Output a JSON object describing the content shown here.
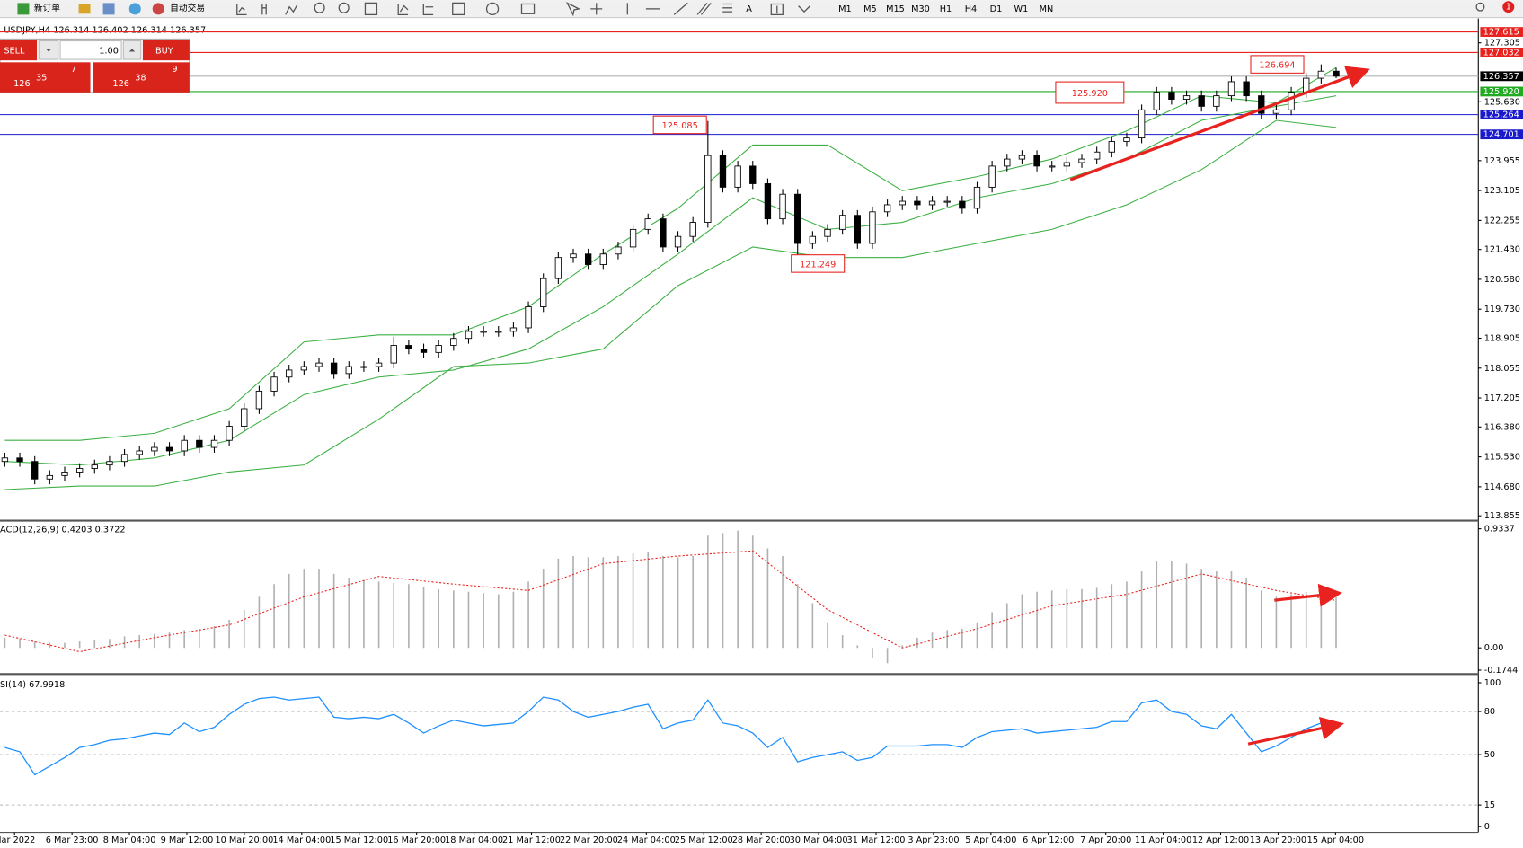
{
  "toolbar": {
    "new_order": "新订单",
    "auto_trading": "自动交易",
    "timeframes": [
      "M1",
      "M5",
      "M15",
      "M30",
      "H1",
      "H4",
      "D1",
      "W1",
      "MN"
    ],
    "alerts": "1"
  },
  "trade_panel": {
    "sell": "SELL",
    "buy": "BUY",
    "lot": "1.00",
    "sell_price": {
      "big": "126",
      "pips": "35",
      "point": "7"
    },
    "buy_price": {
      "big": "126",
      "pips": "38",
      "point": "9"
    }
  },
  "chart_data": [
    {
      "type": "candlestick",
      "title": "USDJPY,H4  126.314 126.402 126.314 126.357",
      "x_labels": [
        "Mar 2022",
        "6 Mar 23:00",
        "8 Mar 04:00",
        "9 Mar 12:00",
        "10 Mar 20:00",
        "14 Mar 04:00",
        "15 Mar 12:00",
        "16 Mar 20:00",
        "18 Mar 04:00",
        "21 Mar 12:00",
        "22 Mar 20:00",
        "24 Mar 04:00",
        "25 Mar 12:00",
        "28 Mar 20:00",
        "30 Mar 04:00",
        "31 Mar 12:00",
        "3 Apr 23:00",
        "5 Apr 04:00",
        "6 Apr 12:00",
        "7 Apr 20:00",
        "11 Apr 04:00",
        "12 Apr 12:00",
        "13 Apr 20:00",
        "15 Apr 04:00"
      ],
      "ohlc": [
        [
          115.4,
          115.65,
          115.25,
          115.5
        ],
        [
          115.5,
          115.65,
          115.25,
          115.4
        ],
        [
          115.4,
          115.55,
          114.75,
          114.9
        ],
        [
          114.9,
          115.15,
          114.75,
          115.0
        ],
        [
          115.0,
          115.25,
          114.85,
          115.1
        ],
        [
          115.1,
          115.35,
          114.95,
          115.2
        ],
        [
          115.2,
          115.45,
          115.05,
          115.3
        ],
        [
          115.3,
          115.55,
          115.15,
          115.4
        ],
        [
          115.4,
          115.75,
          115.25,
          115.6
        ],
        [
          115.6,
          115.85,
          115.45,
          115.7
        ],
        [
          115.7,
          115.95,
          115.55,
          115.8
        ],
        [
          115.8,
          115.95,
          115.55,
          115.7
        ],
        [
          115.7,
          116.15,
          115.55,
          116.0
        ],
        [
          116.0,
          116.15,
          115.65,
          115.8
        ],
        [
          115.8,
          116.15,
          115.65,
          116.0
        ],
        [
          116.0,
          116.55,
          115.85,
          116.4
        ],
        [
          116.4,
          117.05,
          116.25,
          116.9
        ],
        [
          116.9,
          117.55,
          116.75,
          117.4
        ],
        [
          117.4,
          117.95,
          117.25,
          117.8
        ],
        [
          117.8,
          118.15,
          117.65,
          118.0
        ],
        [
          118.0,
          118.25,
          117.85,
          118.1
        ],
        [
          118.1,
          118.35,
          117.95,
          118.2
        ],
        [
          118.2,
          118.35,
          117.75,
          117.9
        ],
        [
          117.9,
          118.25,
          117.75,
          118.1
        ],
        [
          118.1,
          118.25,
          117.95,
          118.1
        ],
        [
          118.1,
          118.35,
          117.95,
          118.2
        ],
        [
          118.2,
          118.95,
          118.05,
          118.7
        ],
        [
          118.7,
          118.85,
          118.45,
          118.6
        ],
        [
          118.6,
          118.75,
          118.35,
          118.5
        ],
        [
          118.5,
          118.85,
          118.35,
          118.7
        ],
        [
          118.7,
          119.05,
          118.55,
          118.9
        ],
        [
          118.9,
          119.25,
          118.75,
          119.1
        ],
        [
          119.1,
          119.25,
          118.95,
          119.1
        ],
        [
          119.1,
          119.25,
          118.95,
          119.1
        ],
        [
          119.1,
          119.35,
          118.95,
          119.2
        ],
        [
          119.2,
          119.95,
          119.05,
          119.8
        ],
        [
          119.8,
          120.75,
          119.65,
          120.6
        ],
        [
          120.6,
          121.35,
          120.45,
          121.2
        ],
        [
          121.2,
          121.45,
          121.05,
          121.3
        ],
        [
          121.3,
          121.45,
          120.85,
          121.0
        ],
        [
          121.0,
          121.45,
          120.85,
          121.3
        ],
        [
          121.3,
          121.65,
          121.15,
          121.5
        ],
        [
          121.5,
          122.15,
          121.35,
          122.0
        ],
        [
          122.0,
          122.45,
          121.85,
          122.3
        ],
        [
          122.3,
          122.45,
          121.35,
          121.5
        ],
        [
          121.5,
          121.95,
          121.35,
          121.8
        ],
        [
          121.8,
          122.35,
          121.65,
          122.2
        ],
        [
          122.2,
          125.085,
          122.05,
          124.1
        ],
        [
          124.1,
          124.25,
          123.05,
          123.2
        ],
        [
          123.2,
          123.95,
          123.05,
          123.8
        ],
        [
          123.8,
          123.95,
          123.15,
          123.3
        ],
        [
          123.3,
          123.45,
          122.15,
          122.3
        ],
        [
          122.3,
          123.15,
          122.15,
          123.0
        ],
        [
          123.0,
          123.15,
          121.249,
          121.6
        ],
        [
          121.6,
          121.95,
          121.45,
          121.8
        ],
        [
          121.8,
          122.15,
          121.65,
          122.0
        ],
        [
          122.0,
          122.55,
          121.85,
          122.4
        ],
        [
          122.4,
          122.55,
          121.45,
          121.6
        ],
        [
          121.6,
          122.65,
          121.45,
          122.5
        ],
        [
          122.5,
          122.85,
          122.35,
          122.7
        ],
        [
          122.7,
          122.95,
          122.55,
          122.8
        ],
        [
          122.8,
          122.95,
          122.55,
          122.7
        ],
        [
          122.7,
          122.95,
          122.55,
          122.8
        ],
        [
          122.8,
          122.95,
          122.65,
          122.8
        ],
        [
          122.8,
          122.95,
          122.45,
          122.6
        ],
        [
          122.6,
          123.35,
          122.45,
          123.2
        ],
        [
          123.2,
          123.95,
          123.05,
          123.8
        ],
        [
          123.8,
          124.15,
          123.65,
          124.0
        ],
        [
          124.0,
          124.25,
          123.85,
          124.1
        ],
        [
          124.1,
          124.25,
          123.65,
          123.8
        ],
        [
          123.8,
          123.95,
          123.65,
          123.8
        ],
        [
          123.8,
          124.05,
          123.65,
          123.9
        ],
        [
          123.9,
          124.15,
          123.75,
          124.0
        ],
        [
          124.0,
          124.35,
          123.85,
          124.2
        ],
        [
          124.2,
          124.65,
          124.05,
          124.5
        ],
        [
          124.5,
          124.75,
          124.35,
          124.6
        ],
        [
          124.6,
          125.55,
          124.45,
          125.4
        ],
        [
          125.4,
          126.05,
          125.25,
          125.9
        ],
        [
          125.9,
          126.05,
          125.55,
          125.7
        ],
        [
          125.7,
          125.95,
          125.55,
          125.8
        ],
        [
          125.8,
          125.95,
          125.35,
          125.5
        ],
        [
          125.5,
          125.95,
          125.35,
          125.8
        ],
        [
          125.8,
          126.35,
          125.65,
          126.2
        ],
        [
          126.2,
          126.35,
          125.65,
          125.8
        ],
        [
          125.8,
          125.95,
          125.15,
          125.3
        ],
        [
          125.3,
          125.55,
          125.15,
          125.4
        ],
        [
          125.4,
          126.05,
          125.25,
          125.9
        ],
        [
          125.9,
          126.45,
          125.75,
          126.3
        ],
        [
          126.3,
          126.694,
          126.15,
          126.5
        ],
        [
          126.5,
          126.6,
          126.3,
          126.357
        ]
      ],
      "bands": {
        "color": "#3cb043",
        "x": [
          0,
          5,
          10,
          15,
          20,
          25,
          30,
          35,
          40,
          45,
          50,
          55,
          60,
          65,
          70,
          75,
          80,
          85,
          89
        ],
        "upper": [
          116.0,
          116.0,
          116.2,
          116.9,
          118.8,
          119.0,
          119.0,
          119.8,
          121.3,
          122.6,
          124.4,
          124.4,
          123.1,
          123.5,
          124.0,
          124.8,
          125.8,
          125.6,
          126.6
        ],
        "middle": [
          115.4,
          115.3,
          115.5,
          116.0,
          117.3,
          117.8,
          118.0,
          118.6,
          119.8,
          121.3,
          122.9,
          122.0,
          122.2,
          122.9,
          123.3,
          124.0,
          125.1,
          125.5,
          125.8
        ],
        "lower": [
          114.6,
          114.7,
          114.7,
          115.1,
          115.3,
          116.6,
          118.1,
          118.2,
          118.6,
          120.4,
          121.5,
          121.2,
          121.2,
          121.6,
          122.0,
          122.7,
          123.7,
          125.1,
          124.9
        ]
      },
      "ylim": [
        113.745,
        127.968
      ],
      "yticks": [
        127.305,
        {
          "value": 125.63,
          "label": "125.630"
        },
        123.955,
        123.105,
        122.255,
        {
          "value": 121.43,
          "label": "121.430"
        },
        {
          "value": 120.58,
          "label": "120.580"
        },
        {
          "value": 119.73,
          "label": "119.730"
        },
        118.905,
        118.055,
        117.205,
        {
          "value": 116.38,
          "label": "116.380"
        },
        {
          "value": 115.53,
          "label": "115.530"
        },
        {
          "value": 114.68,
          "label": "114.680"
        },
        113.855
      ],
      "hlines": [
        {
          "value": 127.615,
          "color": "#e8231f"
        },
        {
          "value": 127.032,
          "color": "#e8231f"
        },
        {
          "value": 126.357,
          "color": "#000000"
        },
        {
          "value": 125.92,
          "label": "125.920",
          "color": "#22aa22"
        },
        {
          "value": 125.264,
          "color": "#1a1acc"
        },
        {
          "value": 124.701,
          "color": "#1a1acc"
        }
      ],
      "annotations": [
        125.085,
        121.249,
        {
          "value": 125.92,
          "label": "125.920"
        },
        126.694
      ]
    },
    {
      "type": "macd",
      "title": "ACD(12,26,9) 0.4203 0.3722",
      "histogram": {
        "color": "#b0b0b0",
        "values": [
          0.08,
          0.07,
          0.05,
          0.04,
          0.04,
          0.05,
          0.06,
          0.07,
          0.09,
          0.1,
          0.11,
          0.12,
          0.14,
          0.15,
          0.17,
          0.22,
          0.3,
          0.4,
          0.5,
          0.58,
          0.62,
          0.62,
          0.58,
          0.55,
          0.53,
          0.52,
          0.51,
          0.5,
          0.48,
          0.46,
          0.45,
          0.44,
          0.43,
          0.42,
          0.44,
          0.52,
          0.62,
          0.7,
          0.72,
          0.71,
          0.71,
          0.72,
          0.74,
          0.75,
          0.72,
          0.71,
          0.72,
          0.88,
          0.9,
          0.92,
          0.88,
          0.78,
          0.72,
          0.5,
          0.35,
          0.2,
          0.1,
          0.02,
          -0.08,
          -0.12,
          0.02,
          0.08,
          0.12,
          0.14,
          0.15,
          0.2,
          0.28,
          0.35,
          0.42,
          0.44,
          0.45,
          0.46,
          0.46,
          0.47,
          0.5,
          0.52,
          0.6,
          0.68,
          0.68,
          0.66,
          0.62,
          0.6,
          0.6,
          0.55,
          0.45,
          0.4,
          0.42,
          0.44,
          0.45,
          0.4203
        ]
      },
      "signal": {
        "color": "#e8231f",
        "x": [
          0,
          5,
          10,
          15,
          20,
          25,
          30,
          35,
          40,
          45,
          50,
          55,
          60,
          65,
          70,
          75,
          80,
          85,
          89
        ],
        "values": [
          0.1,
          -0.03,
          0.08,
          0.18,
          0.4,
          0.56,
          0.5,
          0.45,
          0.66,
          0.72,
          0.76,
          0.3,
          0.0,
          0.15,
          0.33,
          0.42,
          0.58,
          0.45,
          0.3722
        ]
      },
      "ylim": [
        -0.19,
        0.99
      ],
      "yticks": [
        0.9337,
        {
          "value": 0,
          "label": "0.00"
        },
        -0.1744
      ]
    },
    {
      "type": "line",
      "title": "SI(14) 67.9918",
      "color": "#1e90ff",
      "values": [
        55,
        52,
        36,
        42,
        48,
        55,
        57,
        60,
        61,
        63,
        65,
        64,
        72,
        66,
        69,
        78,
        85,
        89,
        90,
        88,
        89,
        90,
        76,
        75,
        76,
        75,
        78,
        72,
        65,
        70,
        74,
        72,
        70,
        71,
        72,
        80,
        90,
        88,
        80,
        76,
        78,
        80,
        83,
        85,
        68,
        72,
        74,
        88,
        72,
        70,
        65,
        55,
        62,
        45,
        48,
        50,
        52,
        46,
        48,
        56,
        56,
        56,
        57,
        57,
        55,
        62,
        66,
        67,
        68,
        65,
        66,
        67,
        68,
        69,
        73,
        73,
        86,
        88,
        80,
        78,
        70,
        68,
        78,
        65,
        52,
        56,
        62,
        68,
        72,
        67.9918
      ],
      "ylim": [
        -4,
        104
      ],
      "yticks": [
        100,
        80,
        50,
        15,
        0
      ],
      "levels": [
        80,
        50,
        15
      ]
    }
  ]
}
